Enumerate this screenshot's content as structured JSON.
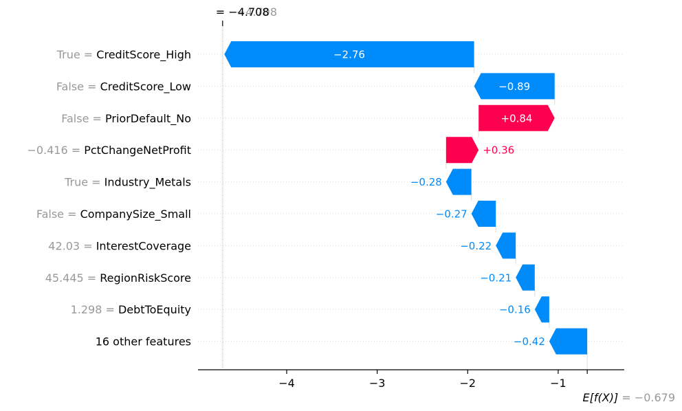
{
  "chart_data": {
    "type": "waterfall",
    "fx_value": -4.708,
    "fx_label_prefix": "= ",
    "fx_text_black": "−4.708",
    "fx_text_gray": "−4.708",
    "base_value": -0.679,
    "expected_label": "E[f(X)]",
    "expected_value_text": "= −0.679",
    "xlim": [
      -4.98,
      -0.27
    ],
    "x_ticks": [
      -4,
      -3,
      -2,
      -1
    ],
    "x_tick_labels": [
      "−4",
      "−3",
      "−2",
      "−1"
    ],
    "features": [
      {
        "value": "True",
        "name": "CreditScore_High",
        "contribution": -2.76,
        "label": "−2.76"
      },
      {
        "value": "False",
        "name": "CreditScore_Low",
        "contribution": -0.89,
        "label": "−0.89"
      },
      {
        "value": "False",
        "name": "PriorDefault_No",
        "contribution": 0.84,
        "label": "+0.84"
      },
      {
        "value": "−0.416",
        "name": "PctChangeNetProfit",
        "contribution": 0.36,
        "label": "+0.36"
      },
      {
        "value": "True",
        "name": "Industry_Metals",
        "contribution": -0.28,
        "label": "−0.28"
      },
      {
        "value": "False",
        "name": "CompanySize_Small",
        "contribution": -0.27,
        "label": "−0.27"
      },
      {
        "value": "42.03",
        "name": "InterestCoverage",
        "contribution": -0.22,
        "label": "−0.22"
      },
      {
        "value": "45.445",
        "name": "RegionRiskScore",
        "contribution": -0.21,
        "label": "−0.21"
      },
      {
        "value": "1.298",
        "name": "DebtToEquity",
        "contribution": -0.16,
        "label": "−0.16"
      },
      {
        "value": "",
        "name": "16 other features",
        "contribution": -0.42,
        "label": "−0.42"
      }
    ],
    "colors": {
      "negative": "#008bfb",
      "positive": "#ff0051",
      "gray_text": "#999999",
      "grid": "#cccccc"
    }
  }
}
